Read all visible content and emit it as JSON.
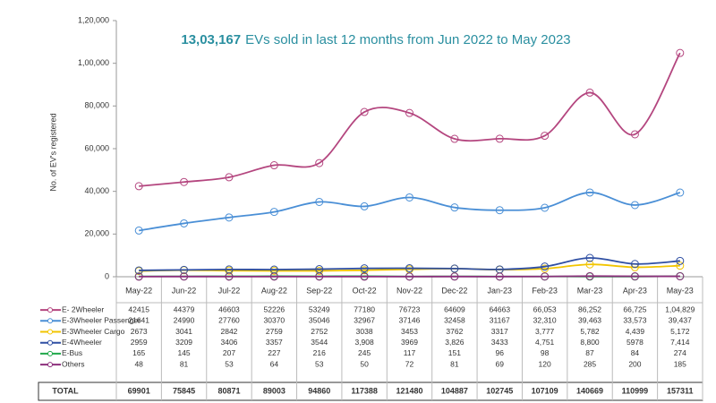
{
  "chart_data": {
    "type": "line",
    "title_number": "13,03,167",
    "title": "EVs sold in last 12 months from Jun 2022 to May 2023",
    "ylabel": "No. of EV's registered",
    "categories": [
      "May-22",
      "Jun-22",
      "Jul-22",
      "Aug-22",
      "Sep-22",
      "Oct-22",
      "Nov-22",
      "Dec-22",
      "Jan-23",
      "Feb-23",
      "Mar-23",
      "Apr-23",
      "May-23"
    ],
    "ylim": [
      0,
      120000
    ],
    "yticks": [
      0,
      {
        "value": 20000,
        "label": "20,000"
      },
      {
        "value": 40000,
        "label": "40,000"
      },
      {
        "value": 60000,
        "label": "60,000"
      },
      {
        "value": 80000,
        "label": "80,000"
      },
      {
        "value": 100000,
        "label": "1,00,000"
      },
      {
        "value": 120000,
        "label": "1,20,000"
      }
    ],
    "series": [
      {
        "name": "E- 2Wheeler",
        "color": "#b4467f",
        "values": [
          42415,
          44379,
          46603,
          52226,
          53249,
          77180,
          76723,
          64609,
          64663,
          66053,
          86252,
          66725,
          104829
        ],
        "value_labels": [
          "42415",
          "44379",
          "46603",
          "52226",
          "53249",
          "77180",
          "76723",
          "64609",
          "64663",
          "66,053",
          "86,252",
          "66,725",
          "1,04,829"
        ]
      },
      {
        "name": "E-3Wheeler Passenger",
        "color": "#4a8fd6",
        "values": [
          21641,
          24990,
          27760,
          30370,
          35046,
          32967,
          37146,
          32458,
          31167,
          32310,
          39463,
          33573,
          39437
        ],
        "value_labels": [
          "21641",
          "24990",
          "27760",
          "30370",
          "35046",
          "32967",
          "37146",
          "32458",
          "31167",
          "32,310",
          "39,463",
          "33,573",
          "39,437"
        ]
      },
      {
        "name": "E-3Wheeler Cargo",
        "color": "#f2c500",
        "values": [
          2673,
          3041,
          2842,
          2759,
          2752,
          3038,
          3453,
          3762,
          3317,
          3777,
          5782,
          4439,
          5172
        ],
        "value_labels": [
          "2673",
          "3041",
          "2842",
          "2759",
          "2752",
          "3038",
          "3453",
          "3762",
          "3317",
          "3,777",
          "5,782",
          "4,439",
          "5,172"
        ]
      },
      {
        "name": "E-4Wheeler",
        "color": "#2f4fa3",
        "values": [
          2959,
          3209,
          3406,
          3357,
          3544,
          3908,
          3969,
          3826,
          3433,
          4751,
          8800,
          5978,
          7414
        ],
        "value_labels": [
          "2959",
          "3209",
          "3406",
          "3357",
          "3544",
          "3,908",
          "3969",
          "3,826",
          "3433",
          "4,751",
          "8,800",
          "5978",
          "7,414"
        ]
      },
      {
        "name": "E-Bus",
        "color": "#1fa84a",
        "values": [
          165,
          145,
          207,
          227,
          216,
          245,
          117,
          151,
          96,
          98,
          87,
          84,
          274
        ]
      },
      {
        "name": "Others",
        "color": "#8c2f7c",
        "values": [
          48,
          81,
          53,
          64,
          53,
          50,
          72,
          81,
          69,
          120,
          285,
          200,
          185
        ]
      }
    ],
    "total_label": "TOTAL",
    "totals": [
      69901,
      75845,
      80871,
      89003,
      94860,
      117388,
      121480,
      104887,
      102745,
      107109,
      140669,
      110999,
      157311
    ]
  }
}
